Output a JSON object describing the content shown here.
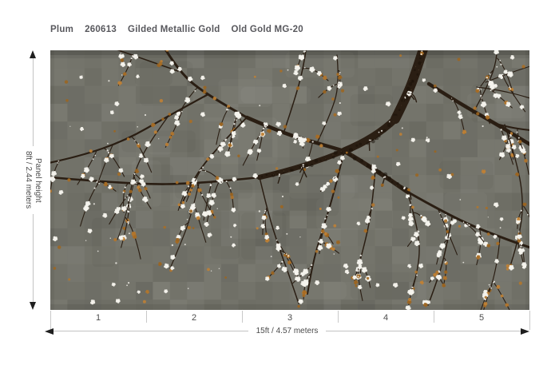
{
  "header": {
    "collection": "Plum",
    "sku": "260613",
    "finish": "Gilded Metallic Gold",
    "colorway": "Old Gold MG-20"
  },
  "vertical_dimension": {
    "line1": "Panel height",
    "line2": "8ft / 2.44 meters"
  },
  "horizontal_dimension": {
    "label": "15ft  / 4.57 meters"
  },
  "panels": {
    "numbers": [
      "1",
      "2",
      "3",
      "4",
      "5"
    ]
  },
  "mural": {
    "background": "#73736a",
    "grid_light": "#ffffff",
    "grid_dark": "#000000",
    "branch": "#2a1e13",
    "branch_dark": "#180f08",
    "branch_light": "#55432e",
    "blossom_white": "#f6f4ee",
    "blossom_orange": "#b2762c",
    "orange_palette": [
      "#b2762c",
      "#a86d24",
      "#c08134",
      "#9c6520"
    ]
  }
}
